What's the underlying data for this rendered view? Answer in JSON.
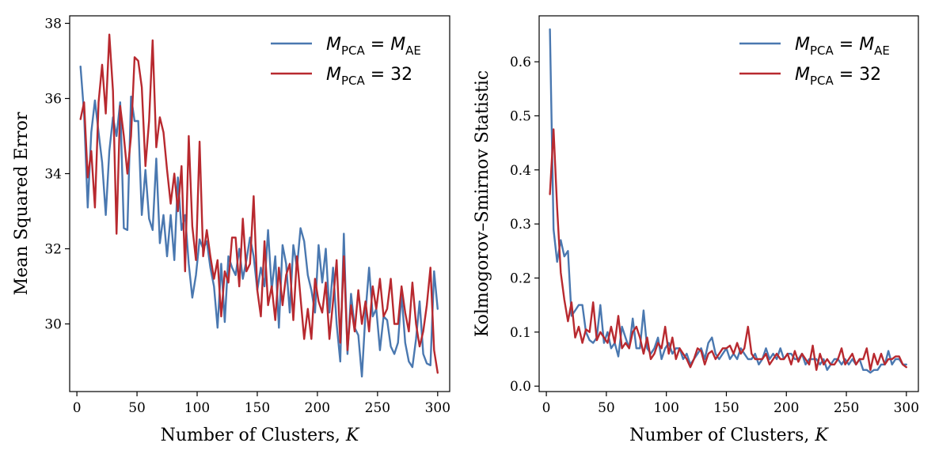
{
  "colors": {
    "blue": "#4a78b0",
    "red": "#b8292f"
  },
  "chart_data": [
    {
      "type": "line",
      "xlabel": "Number of Clusters, K",
      "ylabel": "Mean Squared Error",
      "xlim": [
        -6,
        310
      ],
      "ylim": [
        28.2,
        38.2
      ],
      "xticks": [
        0,
        50,
        100,
        150,
        200,
        250,
        300
      ],
      "yticks": [
        30,
        32,
        34,
        36,
        38
      ],
      "legend_position": "top-right",
      "series": [
        {
          "name": "M_PCA = M_AE",
          "legend_main": "M",
          "legend_sub1": "PCA",
          "legend_eq": " = ",
          "legend_main2": "M",
          "legend_sub2": "AE",
          "color": "blue",
          "x": [
            3,
            6,
            9,
            12,
            15,
            18,
            21,
            24,
            27,
            30,
            33,
            36,
            39,
            42,
            45,
            48,
            51,
            54,
            57,
            60,
            63,
            66,
            69,
            72,
            75,
            78,
            81,
            84,
            87,
            90,
            93,
            96,
            99,
            102,
            105,
            108,
            111,
            114,
            117,
            120,
            123,
            126,
            129,
            132,
            135,
            138,
            141,
            144,
            147,
            150,
            153,
            156,
            159,
            162,
            165,
            168,
            171,
            174,
            177,
            180,
            183,
            186,
            189,
            192,
            195,
            198,
            201,
            204,
            207,
            210,
            213,
            216,
            219,
            222,
            225,
            228,
            231,
            234,
            237,
            240,
            243,
            246,
            249,
            252,
            255,
            258,
            261,
            264,
            267,
            270,
            273,
            276,
            279,
            282,
            285,
            288,
            291,
            294,
            297,
            300
          ],
          "y": [
            36.85,
            35.6,
            33.1,
            35.1,
            35.95,
            35.1,
            34.3,
            32.9,
            34.6,
            35.5,
            35.0,
            35.9,
            32.55,
            32.5,
            36.05,
            35.4,
            35.4,
            32.9,
            34.1,
            32.8,
            32.5,
            34.4,
            32.15,
            32.9,
            31.8,
            32.9,
            31.7,
            33.9,
            32.5,
            32.9,
            31.6,
            30.7,
            31.3,
            32.25,
            32.0,
            32.2,
            31.5,
            31.0,
            29.9,
            31.6,
            30.05,
            31.8,
            31.5,
            31.3,
            32.0,
            31.2,
            31.7,
            32.3,
            31.8,
            30.9,
            31.5,
            31.0,
            32.5,
            30.9,
            31.8,
            29.9,
            32.1,
            31.6,
            30.3,
            32.1,
            31.5,
            32.55,
            32.2,
            31.3,
            30.9,
            30.3,
            32.1,
            31.1,
            32.0,
            30.3,
            31.5,
            30.0,
            29.0,
            32.4,
            29.2,
            30.8,
            29.9,
            29.7,
            28.6,
            30.3,
            31.5,
            30.2,
            30.4,
            29.3,
            30.2,
            30.1,
            29.4,
            29.2,
            29.5,
            30.8,
            29.5,
            29.0,
            28.85,
            29.6,
            30.6,
            29.2,
            28.95,
            28.9,
            31.4,
            30.4
          ]
        },
        {
          "name": "M_PCA = 32",
          "legend_main": "M",
          "legend_sub1": "PCA",
          "legend_eq": " = 32",
          "color": "red",
          "x": [
            3,
            6,
            9,
            12,
            15,
            18,
            21,
            24,
            27,
            30,
            33,
            36,
            39,
            42,
            45,
            48,
            51,
            54,
            57,
            60,
            63,
            66,
            69,
            72,
            75,
            78,
            81,
            84,
            87,
            90,
            93,
            96,
            99,
            102,
            105,
            108,
            111,
            114,
            117,
            120,
            123,
            126,
            129,
            132,
            135,
            138,
            141,
            144,
            147,
            150,
            153,
            156,
            159,
            162,
            165,
            168,
            171,
            174,
            177,
            180,
            183,
            186,
            189,
            192,
            195,
            198,
            201,
            204,
            207,
            210,
            213,
            216,
            219,
            222,
            225,
            228,
            231,
            234,
            237,
            240,
            243,
            246,
            249,
            252,
            255,
            258,
            261,
            264,
            267,
            270,
            273,
            276,
            279,
            282,
            285,
            288,
            291,
            294,
            297,
            300
          ],
          "y": [
            35.45,
            35.9,
            33.9,
            34.6,
            33.1,
            35.9,
            36.9,
            35.6,
            37.7,
            36.2,
            32.4,
            35.8,
            35.0,
            34.0,
            35.0,
            37.1,
            37.0,
            36.3,
            34.2,
            35.4,
            37.55,
            34.7,
            35.5,
            35.1,
            34.1,
            33.2,
            34.0,
            33.0,
            34.2,
            31.4,
            35.0,
            32.6,
            31.7,
            34.85,
            31.8,
            32.5,
            31.8,
            31.2,
            31.7,
            30.2,
            31.4,
            31.1,
            32.3,
            32.3,
            31.0,
            32.8,
            31.4,
            31.6,
            33.4,
            30.9,
            30.2,
            32.2,
            30.5,
            31.0,
            30.1,
            31.5,
            30.5,
            31.3,
            31.6,
            30.1,
            31.8,
            30.7,
            29.6,
            30.4,
            29.6,
            31.2,
            30.6,
            30.3,
            31.1,
            29.6,
            30.6,
            31.7,
            29.5,
            31.8,
            29.3,
            30.5,
            29.8,
            30.9,
            30.0,
            30.6,
            29.8,
            31.0,
            30.4,
            31.2,
            30.2,
            30.4,
            31.2,
            30.0,
            30.0,
            31.0,
            30.3,
            29.8,
            31.1,
            30.0,
            29.4,
            29.8,
            30.5,
            31.5,
            29.3,
            28.7
          ]
        }
      ]
    },
    {
      "type": "line",
      "xlabel": "Number of Clusters, K",
      "ylabel": "Kolmogorov–Smirnov Statistic",
      "xlim": [
        -6,
        310
      ],
      "ylim": [
        -0.01,
        0.685
      ],
      "xticks": [
        0,
        50,
        100,
        150,
        200,
        250,
        300
      ],
      "yticks": [
        0.0,
        0.1,
        0.2,
        0.3,
        0.4,
        0.5,
        0.6
      ],
      "legend_position": "top-right",
      "series": [
        {
          "name": "M_PCA = M_AE",
          "legend_main": "M",
          "legend_sub1": "PCA",
          "legend_eq": " = ",
          "legend_main2": "M",
          "legend_sub2": "AE",
          "color": "blue",
          "x": [
            3,
            6,
            9,
            12,
            15,
            18,
            21,
            24,
            27,
            30,
            33,
            36,
            39,
            42,
            45,
            48,
            51,
            54,
            57,
            60,
            63,
            66,
            69,
            72,
            75,
            78,
            81,
            84,
            87,
            90,
            93,
            96,
            99,
            102,
            105,
            108,
            111,
            114,
            117,
            120,
            123,
            126,
            129,
            132,
            135,
            138,
            141,
            144,
            147,
            150,
            153,
            156,
            159,
            162,
            165,
            168,
            171,
            174,
            177,
            180,
            183,
            186,
            189,
            192,
            195,
            198,
            201,
            204,
            207,
            210,
            213,
            216,
            219,
            222,
            225,
            228,
            231,
            234,
            237,
            240,
            243,
            246,
            249,
            252,
            255,
            258,
            261,
            264,
            267,
            270,
            273,
            276,
            279,
            282,
            285,
            288,
            291,
            294,
            297,
            300
          ],
          "y": [
            0.66,
            0.29,
            0.23,
            0.27,
            0.24,
            0.25,
            0.13,
            0.14,
            0.15,
            0.15,
            0.1,
            0.085,
            0.08,
            0.09,
            0.15,
            0.08,
            0.1,
            0.07,
            0.08,
            0.055,
            0.11,
            0.09,
            0.07,
            0.125,
            0.07,
            0.07,
            0.14,
            0.07,
            0.06,
            0.07,
            0.09,
            0.05,
            0.07,
            0.08,
            0.06,
            0.07,
            0.07,
            0.05,
            0.06,
            0.04,
            0.05,
            0.06,
            0.07,
            0.05,
            0.08,
            0.09,
            0.06,
            0.05,
            0.06,
            0.07,
            0.05,
            0.06,
            0.05,
            0.07,
            0.06,
            0.05,
            0.05,
            0.06,
            0.04,
            0.05,
            0.07,
            0.05,
            0.06,
            0.05,
            0.07,
            0.05,
            0.06,
            0.06,
            0.05,
            0.05,
            0.06,
            0.04,
            0.05,
            0.05,
            0.05,
            0.04,
            0.05,
            0.03,
            0.04,
            0.05,
            0.05,
            0.04,
            0.05,
            0.04,
            0.05,
            0.04,
            0.05,
            0.03,
            0.03,
            0.025,
            0.03,
            0.03,
            0.04,
            0.04,
            0.065,
            0.04,
            0.05,
            0.05,
            0.04,
            0.04
          ]
        },
        {
          "name": "M_PCA = 32",
          "legend_main": "M",
          "legend_sub1": "PCA",
          "legend_eq": " = 32",
          "color": "red",
          "x": [
            3,
            6,
            9,
            12,
            15,
            18,
            21,
            24,
            27,
            30,
            33,
            36,
            39,
            42,
            45,
            48,
            51,
            54,
            57,
            60,
            63,
            66,
            69,
            72,
            75,
            78,
            81,
            84,
            87,
            90,
            93,
            96,
            99,
            102,
            105,
            108,
            111,
            114,
            117,
            120,
            123,
            126,
            129,
            132,
            135,
            138,
            141,
            144,
            147,
            150,
            153,
            156,
            159,
            162,
            165,
            168,
            171,
            174,
            177,
            180,
            183,
            186,
            189,
            192,
            195,
            198,
            201,
            204,
            207,
            210,
            213,
            216,
            219,
            222,
            225,
            228,
            231,
            234,
            237,
            240,
            243,
            246,
            249,
            252,
            255,
            258,
            261,
            264,
            267,
            270,
            273,
            276,
            279,
            282,
            285,
            288,
            291,
            294,
            297,
            300
          ],
          "y": [
            0.355,
            0.475,
            0.33,
            0.21,
            0.16,
            0.12,
            0.155,
            0.09,
            0.11,
            0.08,
            0.105,
            0.1,
            0.155,
            0.085,
            0.1,
            0.09,
            0.08,
            0.11,
            0.08,
            0.13,
            0.07,
            0.08,
            0.07,
            0.1,
            0.11,
            0.09,
            0.06,
            0.09,
            0.05,
            0.06,
            0.08,
            0.07,
            0.11,
            0.06,
            0.09,
            0.05,
            0.07,
            0.06,
            0.05,
            0.035,
            0.05,
            0.07,
            0.065,
            0.04,
            0.06,
            0.065,
            0.05,
            0.06,
            0.07,
            0.07,
            0.075,
            0.06,
            0.08,
            0.06,
            0.07,
            0.11,
            0.06,
            0.05,
            0.05,
            0.05,
            0.06,
            0.04,
            0.05,
            0.06,
            0.05,
            0.05,
            0.06,
            0.04,
            0.065,
            0.045,
            0.06,
            0.05,
            0.04,
            0.075,
            0.03,
            0.06,
            0.04,
            0.05,
            0.04,
            0.04,
            0.05,
            0.07,
            0.04,
            0.05,
            0.06,
            0.04,
            0.05,
            0.05,
            0.07,
            0.03,
            0.06,
            0.04,
            0.06,
            0.04,
            0.05,
            0.05,
            0.055,
            0.055,
            0.04,
            0.035
          ]
        }
      ]
    }
  ]
}
